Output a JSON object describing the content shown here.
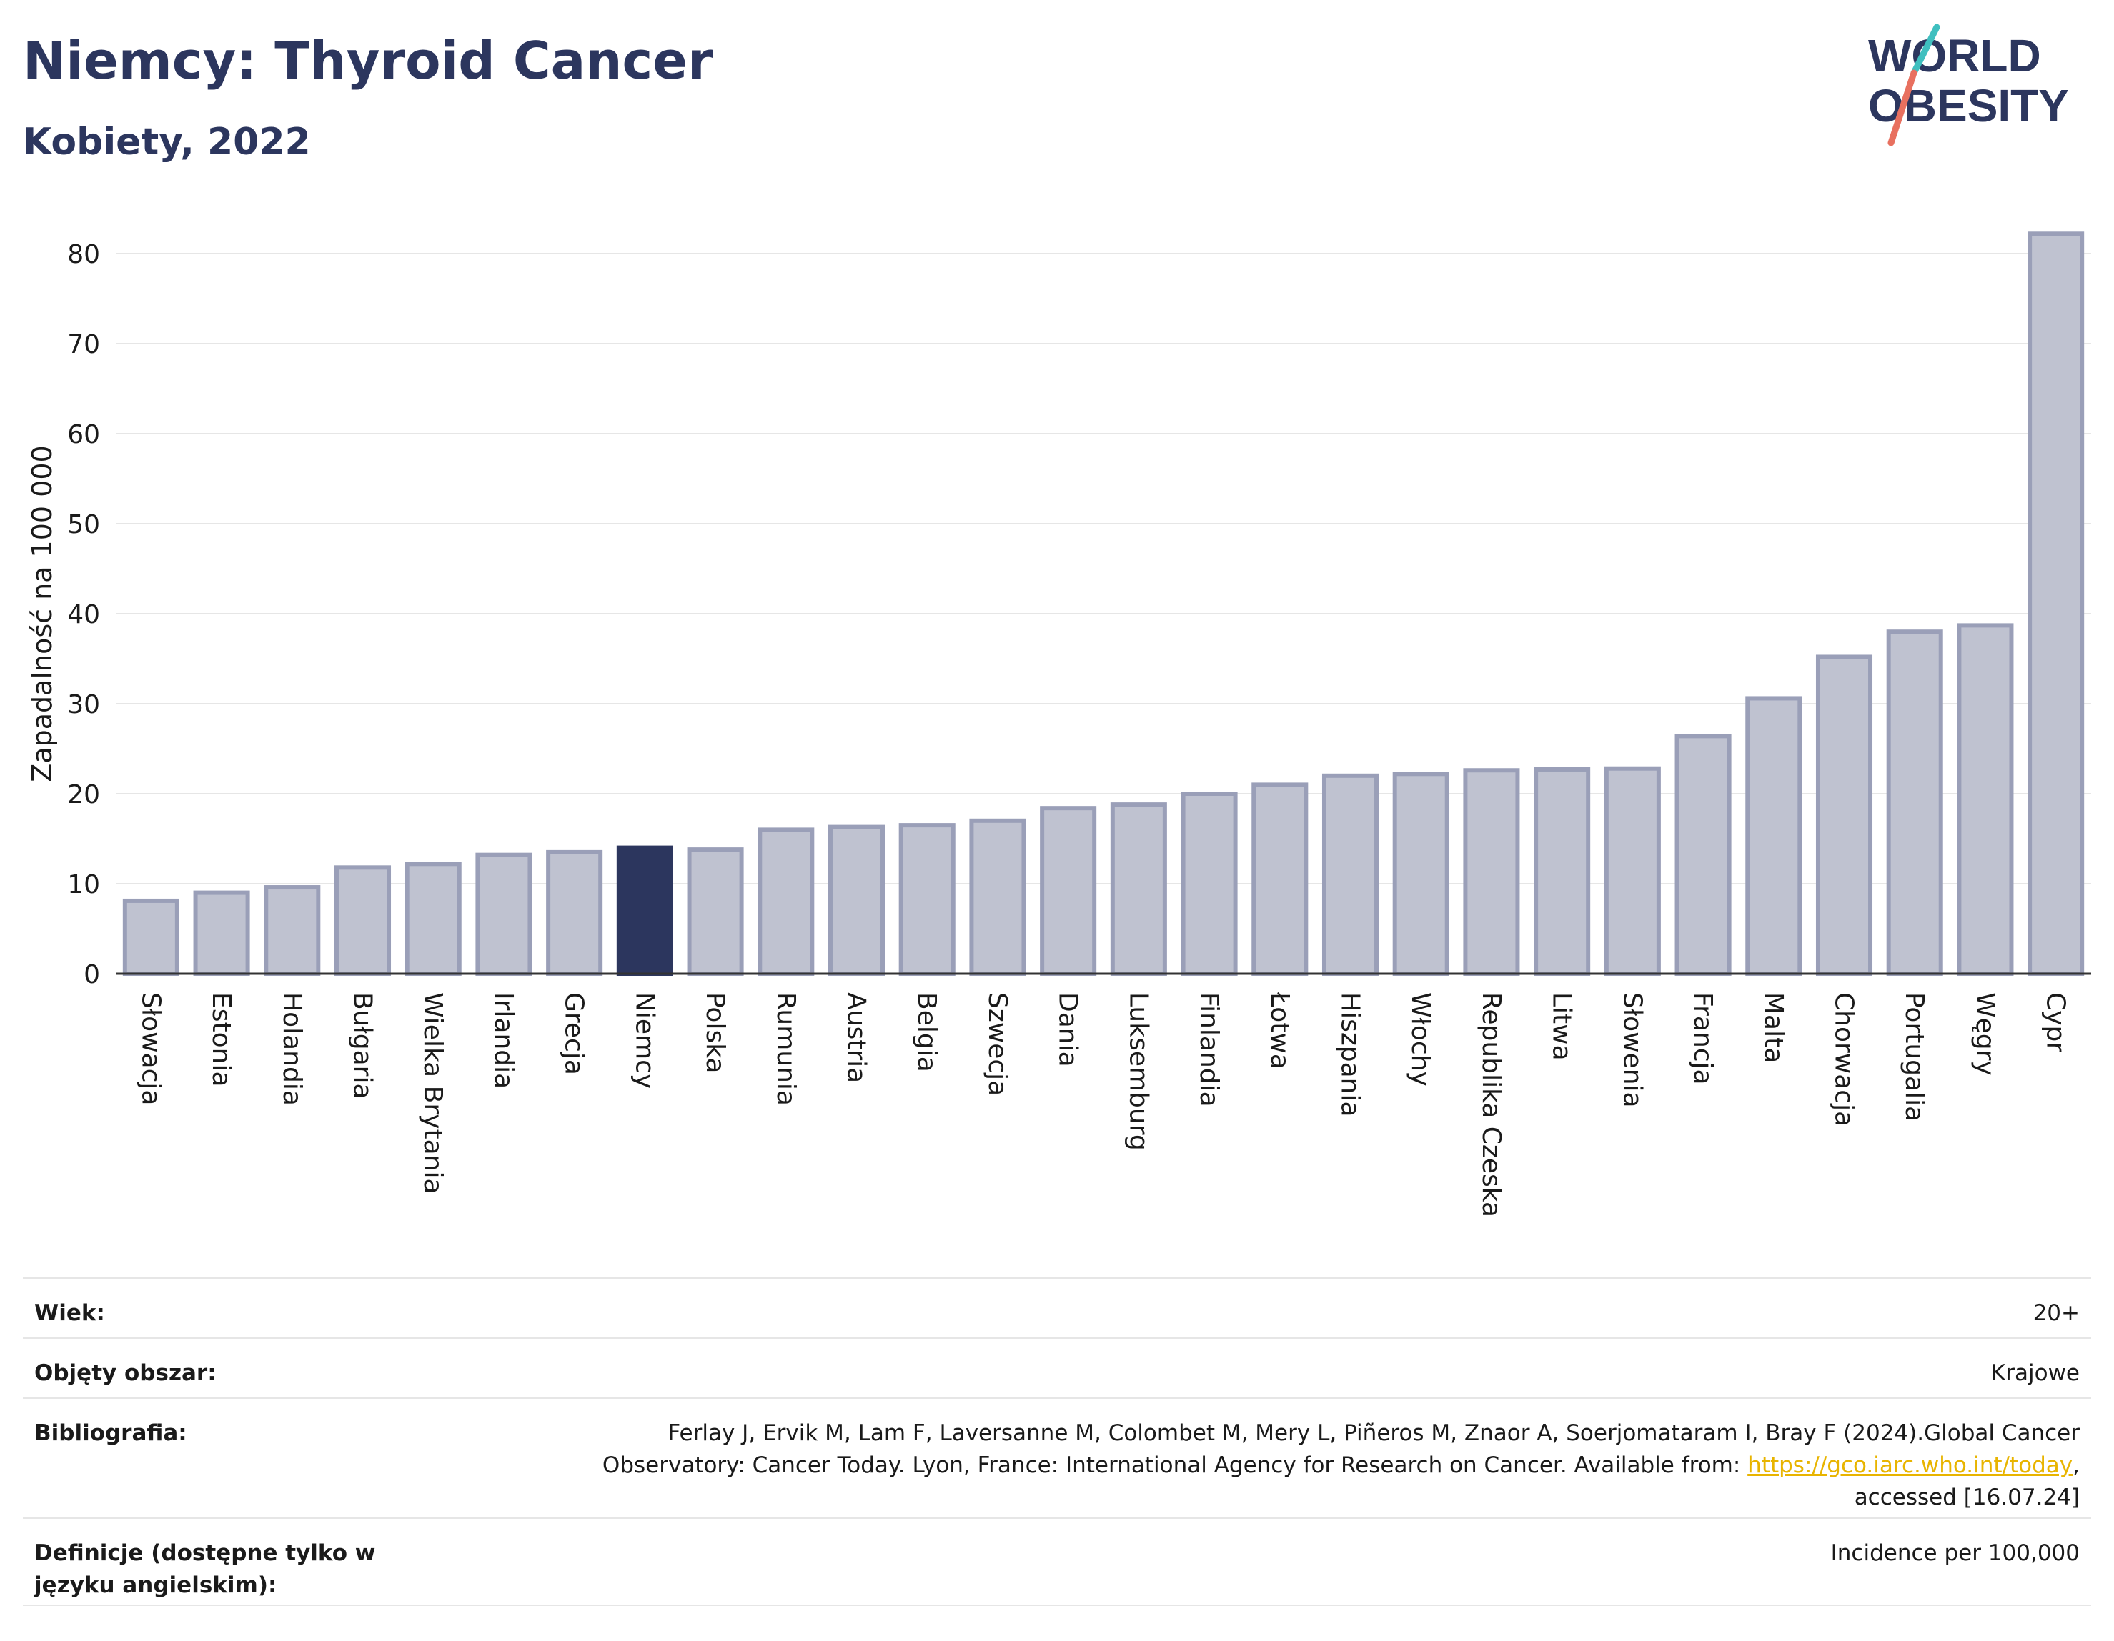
{
  "header": {
    "title": "Niemcy: Thyroid Cancer",
    "subtitle": "Kobiety, 2022"
  },
  "logo": {
    "line1": "WORLD",
    "line2": "OBESITY",
    "slash_colors": [
      "#3fbfbf",
      "#e8705f"
    ],
    "text_color": "#2c365e"
  },
  "chart_data": {
    "type": "bar",
    "title": "Niemcy: Thyroid Cancer",
    "subtitle": "Kobiety, 2022",
    "ylabel": "Zapadalność na 100 000",
    "xlabel": "",
    "ylim": [
      0,
      84
    ],
    "yticks": [
      0,
      10,
      20,
      30,
      40,
      50,
      60,
      70,
      80
    ],
    "grid": true,
    "highlight": "Niemcy",
    "colors": {
      "bar": "#bfc2d0",
      "bar_edge": "#9a9fb8",
      "highlight": "#2c365e"
    },
    "categories": [
      "Słowacja",
      "Estonia",
      "Holandia",
      "Bułgaria",
      "Wielka Brytania",
      "Irlandia",
      "Grecja",
      "Niemcy",
      "Polska",
      "Rumunia",
      "Austria",
      "Belgia",
      "Szwecja",
      "Dania",
      "Luksemburg",
      "Finlandia",
      "Łotwa",
      "Hiszpania",
      "Włochy",
      "Republika Czeska",
      "Litwa",
      "Słowenia",
      "Francja",
      "Malta",
      "Chorwacja",
      "Portugalia",
      "Węgry",
      "Cypr"
    ],
    "values": [
      8.1,
      9.0,
      9.6,
      11.8,
      12.2,
      13.2,
      13.5,
      14.0,
      13.8,
      16.0,
      16.3,
      16.5,
      17.0,
      18.4,
      18.8,
      20.0,
      21.0,
      22.0,
      22.2,
      22.6,
      22.7,
      22.8,
      26.4,
      30.6,
      35.2,
      38.0,
      38.7,
      82.2
    ]
  },
  "info": {
    "rows": [
      {
        "label": "Wiek:",
        "value": "20+"
      },
      {
        "label": "Objęty obszar:",
        "value": "Krajowe"
      },
      {
        "label": "Bibliografia:",
        "value_before": "Ferlay J, Ervik M, Lam F, Laversanne M, Colombet M, Mery L, Piñeros M, Znaor A, Soerjomataram I, Bray F (2024).Global Cancer Observatory: Cancer Today. Lyon, France: International Agency for Research on Cancer. Available from: ",
        "link": "https://gco.iarc.who.int/today",
        "value_after": ", accessed [16.07.24]"
      },
      {
        "label": "Definicje (dostępne tylko w języku angielskim):",
        "value": "Incidence per 100,000"
      }
    ]
  }
}
